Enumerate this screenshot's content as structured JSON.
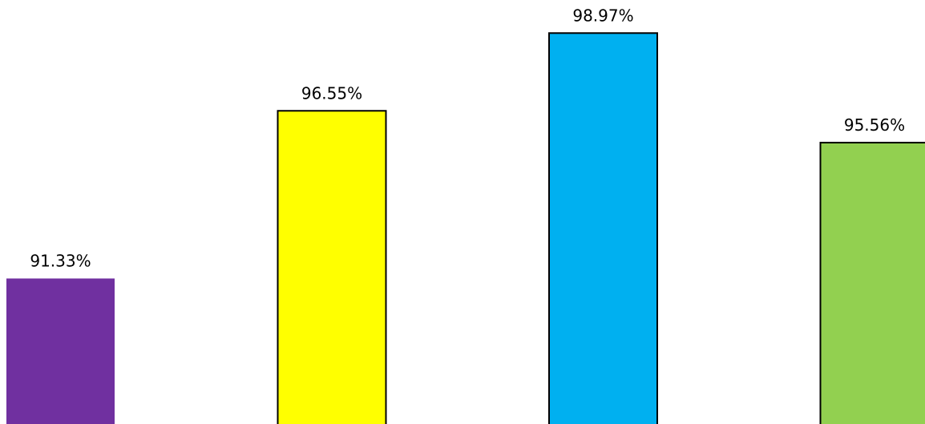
{
  "chart_data": {
    "type": "bar",
    "categories": [
      "",
      "",
      "",
      ""
    ],
    "values": [
      91.33,
      96.55,
      98.97,
      95.56
    ],
    "data_labels": [
      "91.33%",
      "96.55%",
      "98.97%",
      "95.56%"
    ],
    "colors": [
      "#7030A0",
      "#FFFF00",
      "#00B0F0",
      "#92D050"
    ],
    "outlined": [
      false,
      true,
      true,
      true
    ],
    "outline_color": "#000000",
    "ylim": [
      86.8,
      100
    ],
    "title": "",
    "xlabel": "",
    "ylabel": "",
    "grid": false,
    "legend": "none"
  }
}
